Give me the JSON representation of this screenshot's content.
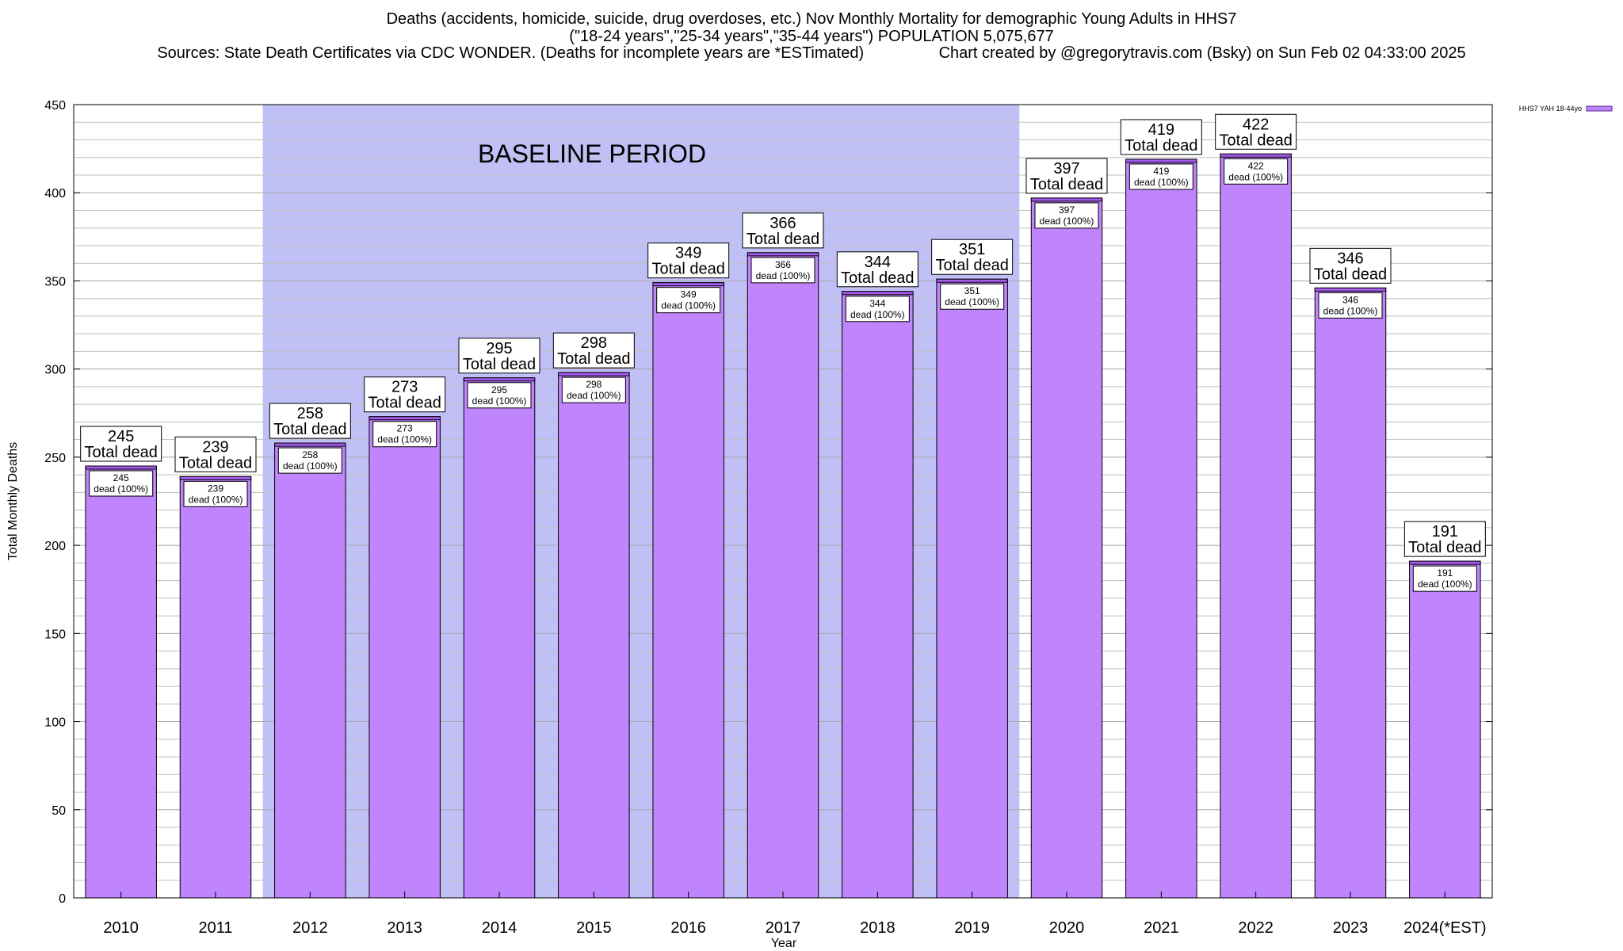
{
  "chart_data": {
    "type": "bar",
    "title": "Deaths (accidents, homicide, suicide, drug overdoses, etc.) Nov Monthly Mortality for demographic Young Adults in HHS7",
    "subtitle": "(\"18-24 years\",\"25-34 years\",\"35-44 years\") POPULATION 5,075,677",
    "sources_line": "Sources: State Death Certificates via CDC WONDER. (Deaths for incomplete years are *ESTimated)                 Chart created by @gregorytravis.com (Bsky) on Sun Feb 02 04:33:00 2025",
    "xlabel": "Year",
    "ylabel": "Total Monthly Deaths",
    "ylim": [
      0,
      450
    ],
    "yticks": [
      0,
      50,
      100,
      150,
      200,
      250,
      300,
      350,
      400,
      450
    ],
    "grid": true,
    "legend": {
      "position": "top-right",
      "entries": [
        "HHS7 YAH 18-44yo"
      ]
    },
    "baseline_label": "BASELINE PERIOD",
    "baseline_range": [
      "2012",
      "2019"
    ],
    "total_label": "Total dead",
    "inner_label": "dead (100%)",
    "categories": [
      "2010",
      "2011",
      "2012",
      "2013",
      "2014",
      "2015",
      "2016",
      "2017",
      "2018",
      "2019",
      "2020",
      "2021",
      "2022",
      "2023",
      "2024(*EST)"
    ],
    "series": [
      {
        "name": "HHS7 YAH 18-44yo",
        "values": [
          245,
          239,
          258,
          273,
          295,
          298,
          349,
          366,
          344,
          351,
          397,
          419,
          422,
          346,
          191
        ]
      }
    ],
    "colors": {
      "bar": "#c084fc",
      "bar_top": "#a75af0",
      "baseline": "#c0c0f7",
      "grid": "#bfbfbf"
    }
  }
}
